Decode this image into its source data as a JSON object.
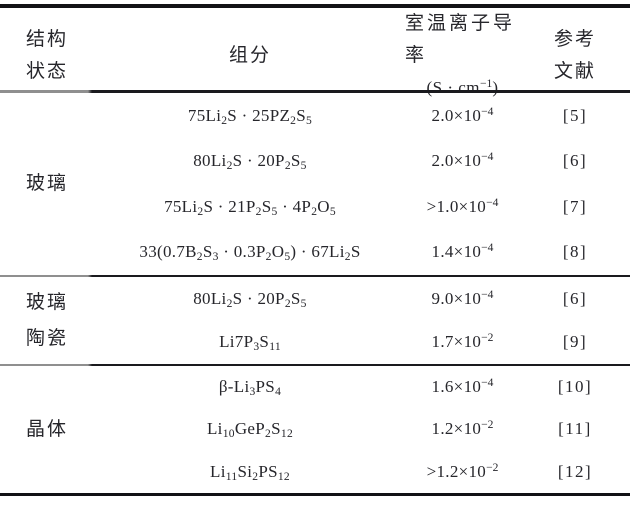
{
  "page": {
    "background_color": "#ffffff",
    "text_color": "#26262b",
    "rule_color": "#121216",
    "rule_fade_color": "#8f8f8f"
  },
  "header": {
    "structure_col_line1": "结构",
    "structure_col_line2": "状态",
    "composition_col": "组分",
    "conductivity_col_line1": "室温离子导率",
    "conductivity_col_line2": "(S · cm^{−1})",
    "reference_col_line1": "参考",
    "reference_col_line2": "文献"
  },
  "sections": [
    {
      "id": "glass",
      "label_lines": [
        "玻璃"
      ],
      "rows": [
        {
          "composition": "75Li_{2}S · 25PZ_{2}S_{5}",
          "conductivity": "2.0×10^{−4}",
          "reference": "[5]"
        },
        {
          "composition": "80Li_{2}S · 20P_{2}S_{5}",
          "conductivity": "2.0×10^{−4}",
          "reference": "[6]"
        },
        {
          "composition": "75Li_{2}S · 21P_{2}S_{5} · 4P_{2}O_{5}",
          "conductivity": ">1.0×10^{−4}",
          "reference": "[7]"
        },
        {
          "composition": "33(0.7B_{2}S_{3} · 0.3P_{2}O_{5}) · 67Li_{2}S",
          "conductivity": "1.4×10^{−4}",
          "reference": "[8]"
        }
      ]
    },
    {
      "id": "glassceramic",
      "label_lines": [
        "玻璃",
        "陶瓷"
      ],
      "rows": [
        {
          "composition": "80Li_{2}S · 20P_{2}S_{5}",
          "conductivity": "9.0×10^{−4}",
          "reference": "[6]"
        },
        {
          "composition": "Li7P_{3}S_{11}",
          "conductivity": "1.7×10^{−2}",
          "reference": "[9]"
        }
      ]
    },
    {
      "id": "crystal",
      "label_lines": [
        "晶体"
      ],
      "rows": [
        {
          "composition": "β-Li_{3}PS_{4}",
          "conductivity": "1.6×10^{−4}",
          "reference": "[10]"
        },
        {
          "composition": "Li_{10}GeP_{2}S_{12}",
          "conductivity": "1.2×10^{−2}",
          "reference": "[11]"
        },
        {
          "composition": "Li_{11}Si_{2}PS_{12}",
          "conductivity": ">1.2×10^{−2}",
          "reference": "[12]"
        }
      ]
    }
  ]
}
